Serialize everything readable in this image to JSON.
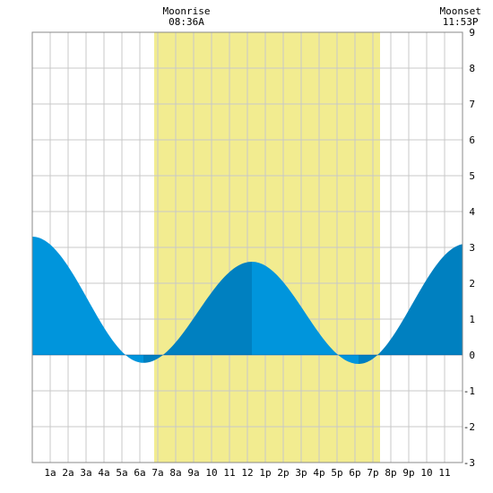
{
  "chart_data": {
    "type": "area",
    "title": "",
    "xlabel": "",
    "ylabel": "",
    "x_unit": "hour of day",
    "xlim": [
      0,
      24
    ],
    "ylim": [
      -3,
      9
    ],
    "y_ticks": [
      "9",
      "8",
      "7",
      "6",
      "5",
      "4",
      "3",
      "2",
      "1",
      "0",
      "-1",
      "-2",
      "-3"
    ],
    "x_tick_labels": [
      "1a",
      "2a",
      "3a",
      "4a",
      "5a",
      "6a",
      "7a",
      "8a",
      "9a",
      "10",
      "11",
      "12",
      "1p",
      "2p",
      "3p",
      "4p",
      "5p",
      "6p",
      "7p",
      "8p",
      "9p",
      "10",
      "11"
    ],
    "daylight_band": {
      "start_hour": 6.8,
      "end_hour": 19.4
    },
    "grid": true,
    "moon_events": [
      {
        "label": "Moonrise",
        "time": "08:36A",
        "hour": 8.6
      },
      {
        "label": "Moonset",
        "time": "11:53P",
        "hour": 23.883
      }
    ],
    "tide_extremes": [
      {
        "hour": 0.0,
        "height": 3.3,
        "type": "high"
      },
      {
        "hour": 6.2,
        "height": -0.22,
        "type": "low"
      },
      {
        "hour": 12.25,
        "height": 2.6,
        "type": "high"
      },
      {
        "hour": 18.2,
        "height": -0.25,
        "type": "low"
      },
      {
        "hour": 24.2,
        "height": 3.1,
        "type": "high"
      }
    ],
    "series": [
      {
        "name": "",
        "x": [
          0,
          1,
          2,
          3,
          4,
          5,
          6,
          7,
          8,
          9,
          10,
          11,
          12,
          13,
          14,
          15,
          16,
          17,
          18,
          19,
          20,
          21,
          22,
          23,
          24
        ],
        "values": [
          3.3,
          3.07,
          2.44,
          1.57,
          0.7,
          0.05,
          -0.22,
          -0.05,
          0.53,
          1.26,
          1.95,
          2.44,
          2.6,
          2.37,
          1.73,
          0.96,
          0.28,
          -0.16,
          -0.25,
          0.09,
          0.82,
          1.66,
          2.4,
          2.9,
          3.1
        ]
      }
    ],
    "colors": {
      "rising": "#0080c0",
      "falling": "#0095dc",
      "daylight": "#f2ec90",
      "grid": "#c8c8c8",
      "zero_line": "#004080"
    }
  }
}
